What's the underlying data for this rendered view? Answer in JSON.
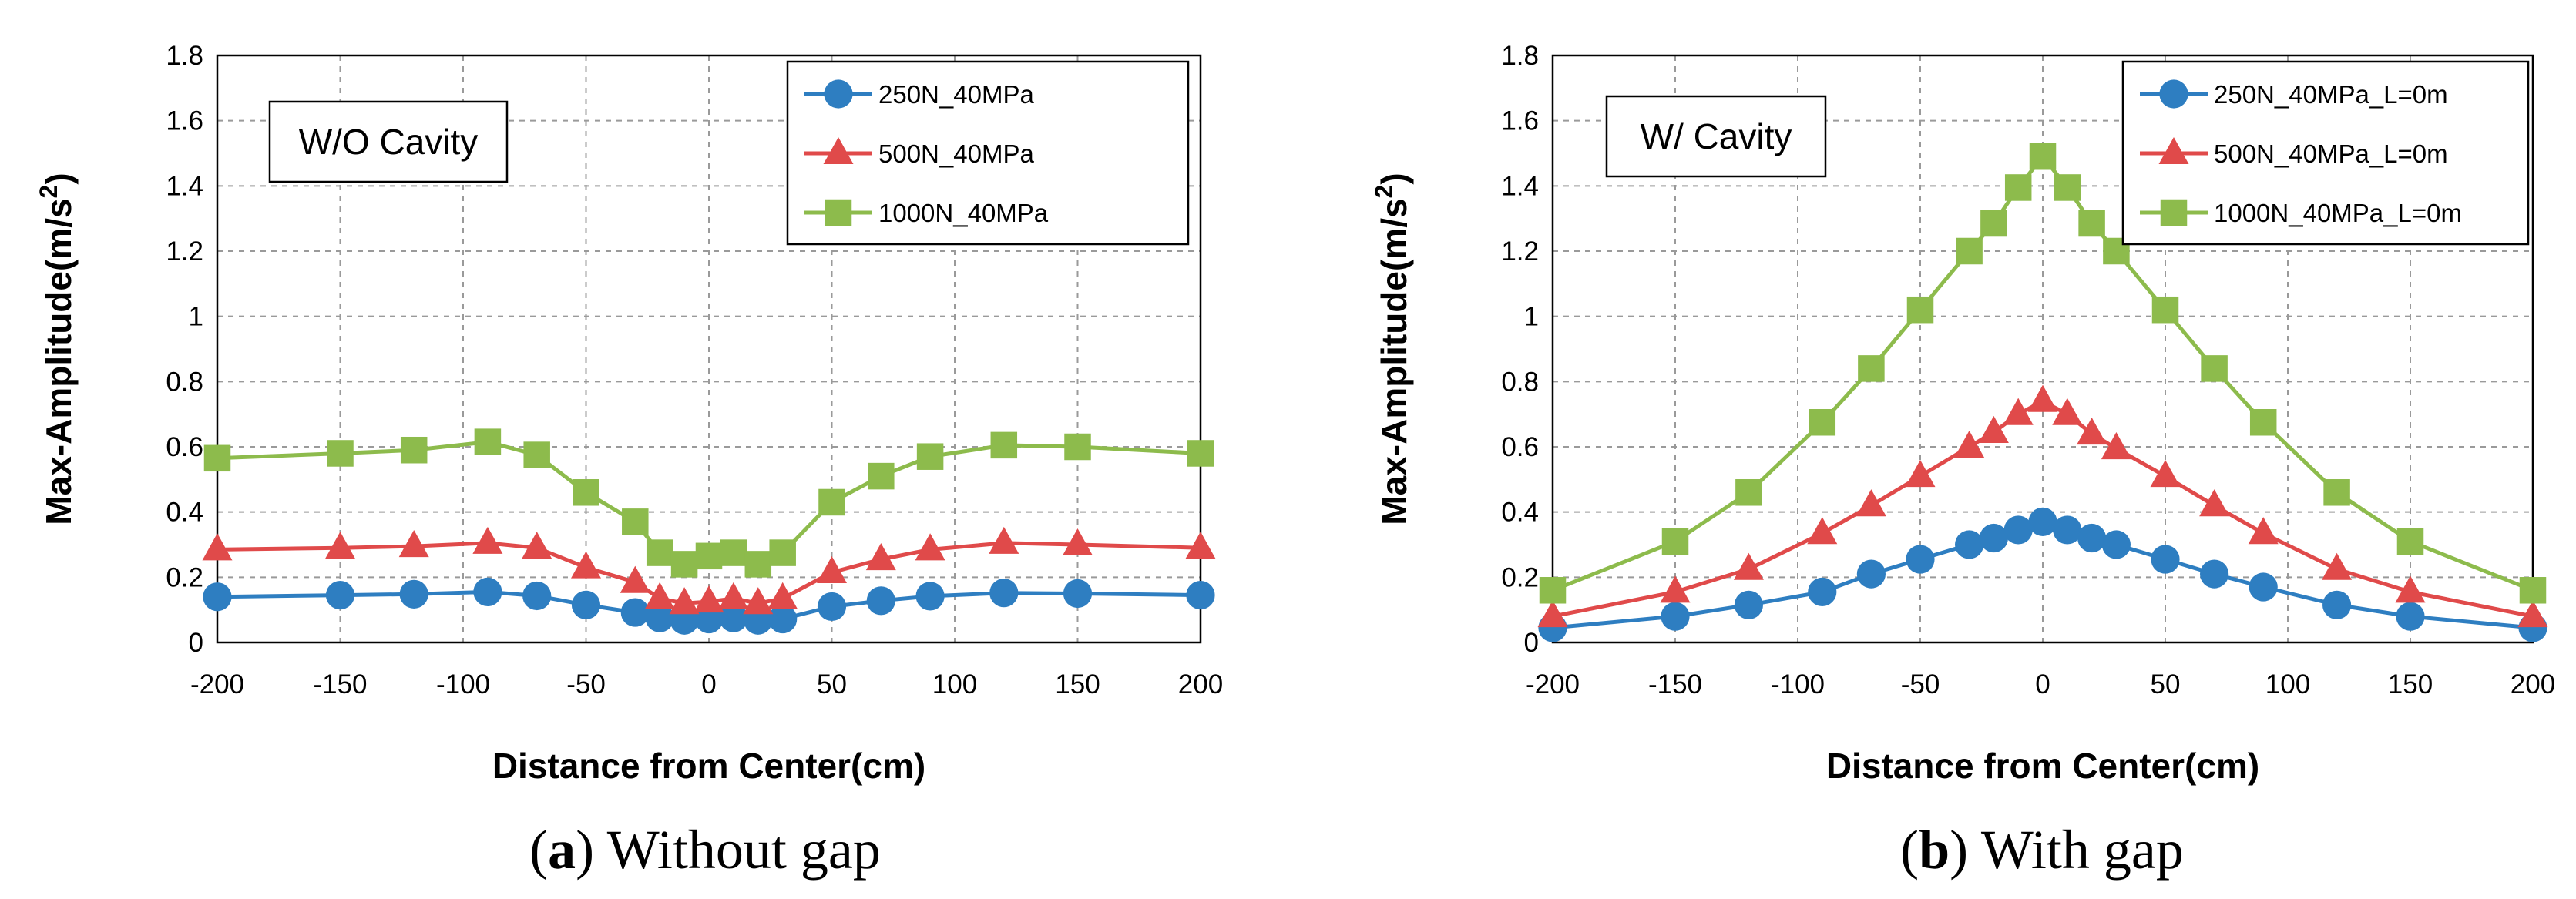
{
  "chart_data": [
    {
      "type": "line",
      "title": "",
      "annotation": "W/O Cavity",
      "xlabel": "Distance from Center(cm)",
      "ylabel_prefix": "Max-Amplitude(m/s",
      "ylabel_sup": "2",
      "ylabel_suffix": ")",
      "xlim": [
        -200,
        200
      ],
      "ylim": [
        0,
        1.8
      ],
      "xticks": [
        "-200",
        "-150",
        "-100",
        "-50",
        "0",
        "50",
        "100",
        "150",
        "200"
      ],
      "yticks": [
        "0",
        "0.2",
        "0.4",
        "0.6",
        "0.8",
        "1",
        "1.2",
        "1.4",
        "1.6",
        "1.8"
      ],
      "grid": true,
      "legend_position": "top-right",
      "x": [
        -200,
        -150,
        -120,
        -90,
        -70,
        -50,
        -30,
        -20,
        -10,
        0,
        10,
        20,
        30,
        50,
        70,
        90,
        120,
        150,
        200
      ],
      "series": [
        {
          "name": "250N_40MPa",
          "color": "#2E7EC1",
          "marker": "circle",
          "values": [
            0.14,
            0.145,
            0.148,
            0.155,
            0.143,
            0.115,
            0.092,
            0.075,
            0.068,
            0.072,
            0.075,
            0.068,
            0.072,
            0.11,
            0.128,
            0.142,
            0.152,
            0.15,
            0.145
          ]
        },
        {
          "name": "500N_40MPa",
          "color": "#E04A4A",
          "marker": "triangle",
          "values": [
            0.285,
            0.29,
            0.295,
            0.305,
            0.29,
            0.23,
            0.185,
            0.135,
            0.12,
            0.125,
            0.135,
            0.12,
            0.135,
            0.215,
            0.255,
            0.285,
            0.305,
            0.3,
            0.29
          ]
        },
        {
          "name": "1000N_40MPa",
          "color": "#8DBB4C",
          "marker": "square",
          "values": [
            0.565,
            0.58,
            0.59,
            0.615,
            0.575,
            0.46,
            0.37,
            0.275,
            0.24,
            0.265,
            0.275,
            0.24,
            0.275,
            0.43,
            0.51,
            0.57,
            0.605,
            0.6,
            0.58
          ]
        }
      ],
      "caption_bold": "a",
      "caption_rest": ") Without gap",
      "caption_open": "("
    },
    {
      "type": "line",
      "title": "",
      "annotation": "W/ Cavity",
      "xlabel": "Distance from Center(cm)",
      "ylabel_prefix": "Max-Amplitude(m/s",
      "ylabel_sup": "2",
      "ylabel_suffix": ")",
      "xlim": [
        -200,
        200
      ],
      "ylim": [
        0,
        1.8
      ],
      "xticks": [
        "-200",
        "-150",
        "-100",
        "-50",
        "0",
        "50",
        "100",
        "150",
        "200"
      ],
      "yticks": [
        "0",
        "0.2",
        "0.4",
        "0.6",
        "0.8",
        "1",
        "1.2",
        "1.4",
        "1.6",
        "1.8"
      ],
      "grid": true,
      "legend_position": "top-right",
      "x": [
        -200,
        -150,
        -120,
        -90,
        -70,
        -50,
        -30,
        -20,
        -10,
        0,
        10,
        20,
        30,
        50,
        70,
        90,
        120,
        150,
        200
      ],
      "series": [
        {
          "name": "250N_40MPa_L=0m",
          "color": "#2E7EC1",
          "marker": "circle",
          "values": [
            0.045,
            0.08,
            0.115,
            0.155,
            0.21,
            0.255,
            0.3,
            0.32,
            0.345,
            0.37,
            0.345,
            0.32,
            0.3,
            0.255,
            0.21,
            0.17,
            0.115,
            0.08,
            0.045
          ]
        },
        {
          "name": "500N_40MPa_L=0m",
          "color": "#E04A4A",
          "marker": "triangle",
          "values": [
            0.08,
            0.155,
            0.225,
            0.335,
            0.42,
            0.51,
            0.6,
            0.645,
            0.7,
            0.74,
            0.7,
            0.64,
            0.595,
            0.51,
            0.42,
            0.335,
            0.225,
            0.155,
            0.08
          ]
        },
        {
          "name": "1000N_40MPa_L=0m",
          "color": "#8DBB4C",
          "marker": "square",
          "values": [
            0.16,
            0.31,
            0.46,
            0.675,
            0.84,
            1.02,
            1.2,
            1.285,
            1.395,
            1.49,
            1.395,
            1.285,
            1.2,
            1.02,
            0.84,
            0.675,
            0.46,
            0.31,
            0.16
          ]
        }
      ],
      "caption_bold": "b",
      "caption_rest": ") With gap",
      "caption_open": "("
    }
  ]
}
